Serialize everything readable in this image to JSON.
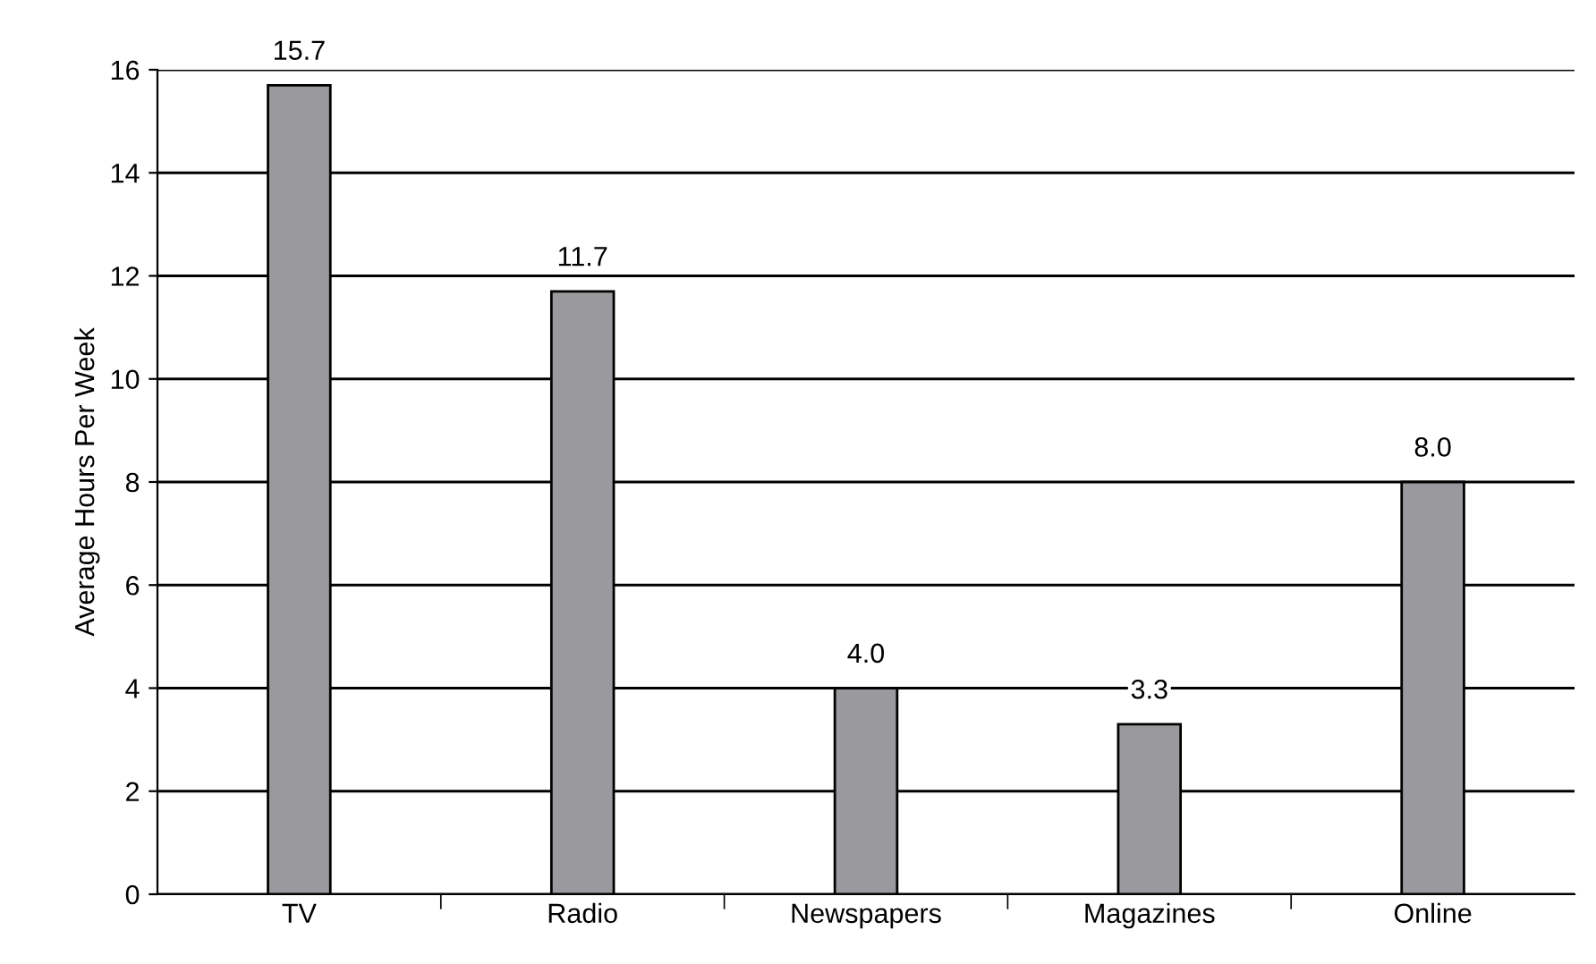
{
  "chart_data": {
    "type": "bar",
    "ylabel": "Average Hours Per Week",
    "categories": [
      "TV",
      "Radio",
      "Newspapers",
      "Magazines",
      "Online"
    ],
    "values": [
      15.7,
      11.7,
      4.0,
      3.3,
      8.0
    ],
    "value_labels": [
      "15.7",
      "11.7",
      "4.0",
      "3.3",
      "8.0"
    ],
    "color": "#9a9a9e",
    "ylim": [
      0,
      16
    ],
    "yticks": [
      0,
      2,
      4,
      6,
      8,
      10,
      12,
      14,
      16
    ],
    "grid": "y",
    "legend": false
  }
}
